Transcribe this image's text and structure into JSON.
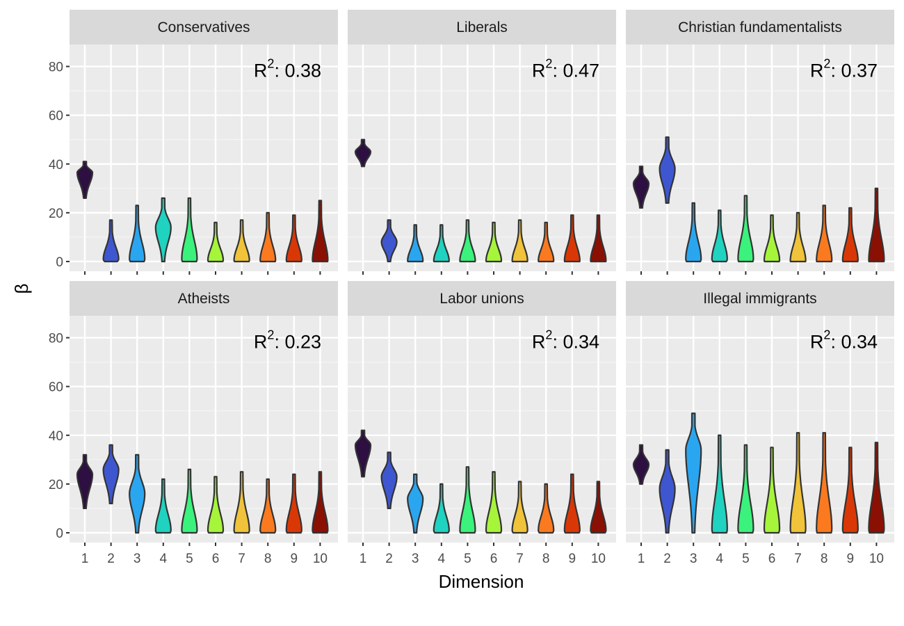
{
  "chart_data": {
    "type": "violin",
    "xlabel": "Dimension",
    "ylabel": "β",
    "ylim": [
      -4,
      89
    ],
    "y_ticks": [
      0,
      20,
      40,
      60,
      80
    ],
    "categories": [
      "1",
      "2",
      "3",
      "4",
      "5",
      "6",
      "7",
      "8",
      "9",
      "10"
    ],
    "r2_prefix": "R",
    "r2_superscript": "2",
    "r2_separator": ": ",
    "category_colors": [
      "#2d0f41",
      "#3e57d0",
      "#2aa6f0",
      "#1fd3c0",
      "#3bf27c",
      "#a6f53a",
      "#f0c33a",
      "#fb7a1f",
      "#d93806",
      "#8a1003"
    ],
    "panels": [
      {
        "name": "Conservatives",
        "r2": "0.38",
        "violins": [
          {
            "min": 26,
            "max": 41,
            "mode": 36.5
          },
          {
            "min": 0,
            "max": 17,
            "mode": 1
          },
          {
            "min": 0,
            "max": 23,
            "mode": 1
          },
          {
            "min": 0,
            "max": 26,
            "mode": 14
          },
          {
            "min": 0,
            "max": 26,
            "mode": 1
          },
          {
            "min": 0,
            "max": 16,
            "mode": 0.5
          },
          {
            "min": 0,
            "max": 17,
            "mode": 0.5
          },
          {
            "min": 0,
            "max": 20,
            "mode": 0.5
          },
          {
            "min": 0,
            "max": 19,
            "mode": 0.5
          },
          {
            "min": 0,
            "max": 25,
            "mode": 0.5
          }
        ]
      },
      {
        "name": "Liberals",
        "r2": "0.47",
        "violins": [
          {
            "min": 39,
            "max": 50,
            "mode": 45
          },
          {
            "min": 0,
            "max": 17,
            "mode": 8
          },
          {
            "min": 0,
            "max": 15,
            "mode": 0.3
          },
          {
            "min": 0,
            "max": 15,
            "mode": 0.3
          },
          {
            "min": 0,
            "max": 17,
            "mode": 0.3
          },
          {
            "min": 0,
            "max": 16,
            "mode": 0.3
          },
          {
            "min": 0,
            "max": 17,
            "mode": 0.3
          },
          {
            "min": 0,
            "max": 16,
            "mode": 0.3
          },
          {
            "min": 0,
            "max": 19,
            "mode": 0.3
          },
          {
            "min": 0,
            "max": 19,
            "mode": 0.3
          }
        ]
      },
      {
        "name": "Christian fundamentalists",
        "r2": "0.37",
        "violins": [
          {
            "min": 22,
            "max": 39,
            "mode": 32
          },
          {
            "min": 24,
            "max": 51,
            "mode": 38
          },
          {
            "min": 0,
            "max": 24,
            "mode": 1
          },
          {
            "min": 0,
            "max": 21,
            "mode": 1
          },
          {
            "min": 0,
            "max": 27,
            "mode": 1
          },
          {
            "min": 0,
            "max": 19,
            "mode": 0.5
          },
          {
            "min": 0,
            "max": 20,
            "mode": 0.3
          },
          {
            "min": 0,
            "max": 23,
            "mode": 0.5
          },
          {
            "min": 0,
            "max": 22,
            "mode": 0.5
          },
          {
            "min": 0,
            "max": 30,
            "mode": 0.5
          }
        ]
      },
      {
        "name": "Atheists",
        "r2": "0.23",
        "violins": [
          {
            "min": 10,
            "max": 32,
            "mode": 24
          },
          {
            "min": 12,
            "max": 36,
            "mode": 26
          },
          {
            "min": 0,
            "max": 32,
            "mode": 16
          },
          {
            "min": 0,
            "max": 22,
            "mode": 1
          },
          {
            "min": 0,
            "max": 26,
            "mode": 1
          },
          {
            "min": 0,
            "max": 23,
            "mode": 1
          },
          {
            "min": 0,
            "max": 25,
            "mode": 1
          },
          {
            "min": 0,
            "max": 22,
            "mode": 1
          },
          {
            "min": 0,
            "max": 24,
            "mode": 1
          },
          {
            "min": 0,
            "max": 25,
            "mode": 1
          }
        ]
      },
      {
        "name": "Labor unions",
        "r2": "0.34",
        "violins": [
          {
            "min": 23,
            "max": 42,
            "mode": 36
          },
          {
            "min": 10,
            "max": 33,
            "mode": 23
          },
          {
            "min": 0,
            "max": 24,
            "mode": 14
          },
          {
            "min": 0,
            "max": 20,
            "mode": 1
          },
          {
            "min": 0,
            "max": 27,
            "mode": 1
          },
          {
            "min": 0,
            "max": 25,
            "mode": 1
          },
          {
            "min": 0,
            "max": 21,
            "mode": 1
          },
          {
            "min": 0,
            "max": 20,
            "mode": 1
          },
          {
            "min": 0,
            "max": 24,
            "mode": 1
          },
          {
            "min": 0,
            "max": 21,
            "mode": 1
          }
        ]
      },
      {
        "name": "Illegal immigrants",
        "r2": "0.34",
        "violins": [
          {
            "min": 20,
            "max": 36,
            "mode": 28
          },
          {
            "min": 0,
            "max": 34,
            "mode": 18
          },
          {
            "min": 0,
            "max": 49,
            "mode": 34
          },
          {
            "min": 0,
            "max": 40,
            "mode": 1.5
          },
          {
            "min": 0,
            "max": 36,
            "mode": 1.5
          },
          {
            "min": 0,
            "max": 35,
            "mode": 1.5
          },
          {
            "min": 0,
            "max": 41,
            "mode": 1.5
          },
          {
            "min": 0,
            "max": 41,
            "mode": 1.5
          },
          {
            "min": 0,
            "max": 35,
            "mode": 1.5
          },
          {
            "min": 0,
            "max": 37,
            "mode": 1.5
          }
        ]
      }
    ]
  }
}
